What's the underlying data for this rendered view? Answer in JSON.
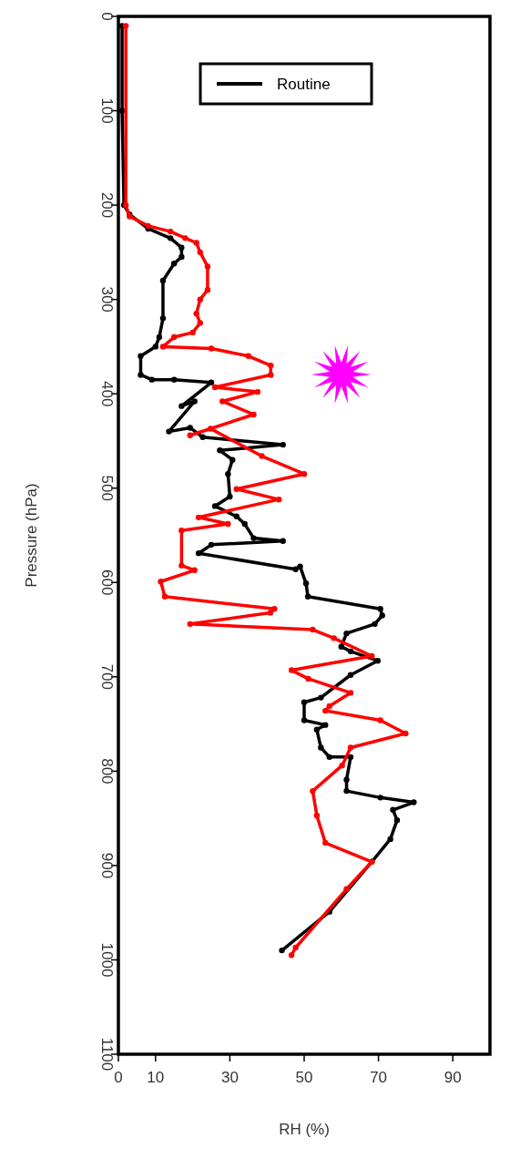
{
  "chart_data": {
    "type": "line",
    "xlabel": "RH (%)",
    "ylabel": "Pressure (hPa)",
    "xlim": [
      0,
      100
    ],
    "xticks": [
      0,
      10,
      30,
      50,
      70,
      90
    ],
    "ylim": [
      1100,
      0
    ],
    "yticks": [
      0,
      100,
      200,
      300,
      400,
      500,
      600,
      700,
      800,
      900,
      1000,
      1100
    ],
    "grid": false,
    "legend": "top left",
    "marker": "circle",
    "line_style": "solid",
    "series": [
      {
        "name": "Routine",
        "color": "#000000",
        "x": [
          1,
          1,
          1.5,
          3,
          8,
          14,
          17,
          17,
          15,
          12,
          12,
          11,
          10,
          6,
          6,
          9,
          15,
          25,
          17,
          20.5,
          13.6,
          19.3,
          22.7,
          44.3,
          27.3,
          30.7,
          29.5,
          30,
          26,
          31.8,
          34,
          36.4,
          44.3,
          25,
          21.6,
          47.7,
          48.9,
          50.5,
          51,
          70.5,
          71,
          69,
          61.4,
          60,
          62.5,
          69.8,
          62.5,
          54.5,
          50,
          50,
          55.7,
          53.4,
          54.5,
          56.8,
          62.5,
          61.4,
          61.4,
          70.5,
          79.5,
          73.9,
          75,
          73.2,
          68.2,
          56.8,
          44
        ],
        "values": [
          10,
          100,
          200,
          210,
          225,
          235,
          245,
          255,
          262,
          280,
          320,
          340,
          350,
          360,
          380,
          385,
          385,
          388,
          413,
          408,
          440,
          436,
          446,
          454,
          460,
          470,
          485,
          509,
          519,
          530,
          538,
          553,
          556,
          560,
          569,
          586,
          583,
          601,
          615,
          628,
          635,
          644,
          654,
          668,
          673,
          683,
          698,
          722,
          727,
          746,
          751,
          756,
          775,
          785,
          785,
          809,
          821,
          828,
          833,
          841,
          852,
          872,
          896,
          949,
          990
        ]
      },
      {
        "color": "#ff0000",
        "x": [
          2,
          2,
          3,
          8,
          14,
          18,
          21,
          22,
          24,
          24,
          22,
          21,
          22,
          20,
          15,
          12,
          25,
          35,
          41,
          41,
          26,
          37.5,
          28,
          36.4,
          19.3,
          24.8,
          38.6,
          50,
          31.8,
          43.2,
          21.6,
          29.5,
          17,
          17,
          20.5,
          11.4,
          12.5,
          42,
          40.9,
          19.3,
          52.3,
          58,
          68.2,
          46.6,
          51.1,
          62.5,
          56.8,
          55.7,
          70.5,
          77.3,
          62.5,
          60.2,
          52.3,
          53.4,
          55.7,
          68.2,
          61.4,
          47.7,
          46.6
        ],
        "values": [
          10,
          200,
          212,
          222,
          228,
          235,
          240,
          250,
          265,
          290,
          300,
          315,
          325,
          335,
          340,
          350,
          352,
          360,
          370,
          380,
          393,
          398,
          408,
          422,
          444,
          437,
          466,
          485,
          501,
          512,
          531,
          538,
          545,
          582,
          587,
          599,
          615,
          628,
          632,
          644,
          650,
          659,
          678,
          693,
          702,
          717,
          731,
          736,
          746,
          760,
          775,
          794,
          821,
          847,
          876,
          896,
          925,
          987,
          995
        ]
      }
    ]
  }
}
